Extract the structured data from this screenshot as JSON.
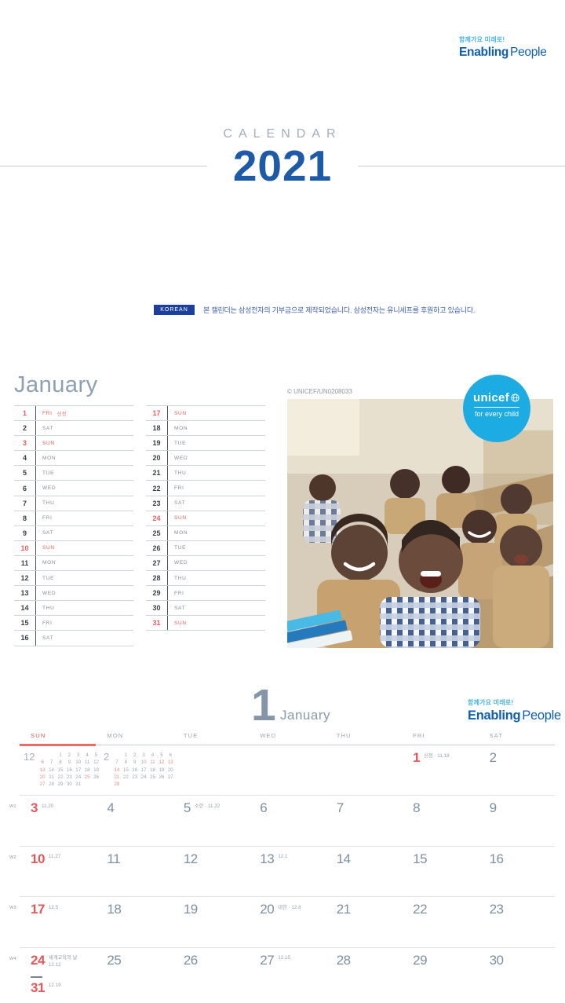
{
  "brand": {
    "tagline": "함께가요 미래로!",
    "name_bold": "Enabling",
    "name_light": "People"
  },
  "cover": {
    "label": "CALENDAR",
    "year": "2021"
  },
  "note": {
    "badge": "KOREAN",
    "text": "본 캘린더는 삼성전자의 기부금으로 제작되었습니다. 삼성전자는 유니세프를 후원하고 있습니다."
  },
  "photo": {
    "credit": "© UNICEF/UN0208033",
    "badge_name": "unicef",
    "badge_tagline": "for every child"
  },
  "colors": {
    "accent_red": "#e4575a",
    "brand_blue": "#0f5fb0",
    "unicef_blue": "#1cabe2",
    "year_blue": "#1d5aa7"
  },
  "month_list": {
    "title": "January",
    "col1": [
      {
        "d": "1",
        "w": "FRI",
        "hol": "신정",
        "red": true
      },
      {
        "d": "2",
        "w": "SAT"
      },
      {
        "d": "3",
        "w": "SUN",
        "red": true
      },
      {
        "d": "4",
        "w": "MON"
      },
      {
        "d": "5",
        "w": "TUE"
      },
      {
        "d": "6",
        "w": "WED"
      },
      {
        "d": "7",
        "w": "THU"
      },
      {
        "d": "8",
        "w": "FRI"
      },
      {
        "d": "9",
        "w": "SAT"
      },
      {
        "d": "10",
        "w": "SUN",
        "red": true
      },
      {
        "d": "11",
        "w": "MON"
      },
      {
        "d": "12",
        "w": "TUE"
      },
      {
        "d": "13",
        "w": "WED"
      },
      {
        "d": "14",
        "w": "THU"
      },
      {
        "d": "15",
        "w": "FRI"
      },
      {
        "d": "16",
        "w": "SAT"
      }
    ],
    "col2": [
      {
        "d": "17",
        "w": "SUN",
        "red": true
      },
      {
        "d": "18",
        "w": "MON"
      },
      {
        "d": "19",
        "w": "TUE"
      },
      {
        "d": "20",
        "w": "WED"
      },
      {
        "d": "21",
        "w": "THU"
      },
      {
        "d": "22",
        "w": "FRI"
      },
      {
        "d": "23",
        "w": "SAT"
      },
      {
        "d": "24",
        "w": "SUN",
        "red": true
      },
      {
        "d": "25",
        "w": "MON"
      },
      {
        "d": "26",
        "w": "TUE"
      },
      {
        "d": "27",
        "w": "WED"
      },
      {
        "d": "28",
        "w": "THU"
      },
      {
        "d": "29",
        "w": "FRI"
      },
      {
        "d": "30",
        "w": "SAT"
      },
      {
        "d": "31",
        "w": "SUN",
        "red": true
      }
    ]
  },
  "month_grid": {
    "num": "1",
    "name": "January",
    "weekdays": [
      "SUN",
      "MON",
      "TUE",
      "WED",
      "THU",
      "FRI",
      "SAT"
    ],
    "mini_prev": {
      "label": "12",
      "rows": [
        [
          "",
          "",
          "1",
          "2",
          "3",
          "4",
          "5"
        ],
        [
          "6",
          "7",
          "8",
          "9",
          "10",
          "11",
          "12"
        ],
        [
          "13",
          "14",
          "15",
          "16",
          "17",
          "18",
          "19"
        ],
        [
          "20",
          "21",
          "22",
          "23",
          "24",
          "25",
          "26"
        ],
        [
          "27",
          "28",
          "29",
          "30",
          "31",
          "",
          ""
        ]
      ],
      "red": [
        "6",
        "13",
        "20",
        "25",
        "27"
      ]
    },
    "mini_next": {
      "label": "2",
      "rows": [
        [
          "",
          "1",
          "2",
          "3",
          "4",
          "5",
          "6"
        ],
        [
          "7",
          "8",
          "9",
          "10",
          "11",
          "12",
          "13"
        ],
        [
          "14",
          "15",
          "16",
          "17",
          "18",
          "19",
          "20"
        ],
        [
          "21",
          "22",
          "23",
          "24",
          "25",
          "26",
          "27"
        ],
        [
          "28",
          "",
          "",
          "",
          "",
          "",
          ""
        ]
      ],
      "red": [
        "7",
        "11",
        "12",
        "13",
        "14",
        "21",
        "28"
      ]
    },
    "lead_cells": [
      {
        "col": 5,
        "d": "1",
        "red": true,
        "note": "신정 · 11.18"
      },
      {
        "col": 6,
        "d": "2"
      }
    ],
    "weeks": [
      {
        "label": "W1",
        "cells": [
          {
            "d": "3",
            "red": true,
            "note": "11.20"
          },
          {
            "d": "4"
          },
          {
            "d": "5",
            "note": "소한 · 11.22"
          },
          {
            "d": "6"
          },
          {
            "d": "7"
          },
          {
            "d": "8"
          },
          {
            "d": "9"
          }
        ]
      },
      {
        "label": "W2",
        "cells": [
          {
            "d": "10",
            "red": true,
            "note": "11.27"
          },
          {
            "d": "11"
          },
          {
            "d": "12"
          },
          {
            "d": "13",
            "note": "12.1"
          },
          {
            "d": "14"
          },
          {
            "d": "15"
          },
          {
            "d": "16"
          }
        ]
      },
      {
        "label": "W3",
        "cells": [
          {
            "d": "17",
            "red": true,
            "note": "12.5"
          },
          {
            "d": "18"
          },
          {
            "d": "19"
          },
          {
            "d": "20",
            "note": "대한 · 12.8"
          },
          {
            "d": "21"
          },
          {
            "d": "22"
          },
          {
            "d": "23"
          }
        ]
      },
      {
        "label": "W4",
        "cells": [
          {
            "d": "24",
            "red": true,
            "note": "세계교육의 날",
            "note2": "12.12"
          },
          {
            "d": "25"
          },
          {
            "d": "26"
          },
          {
            "d": "27",
            "note": "12.15"
          },
          {
            "d": "28"
          },
          {
            "d": "29"
          },
          {
            "d": "30"
          }
        ]
      }
    ],
    "overflow": {
      "d": "31",
      "red": true,
      "note": "12.19"
    }
  }
}
